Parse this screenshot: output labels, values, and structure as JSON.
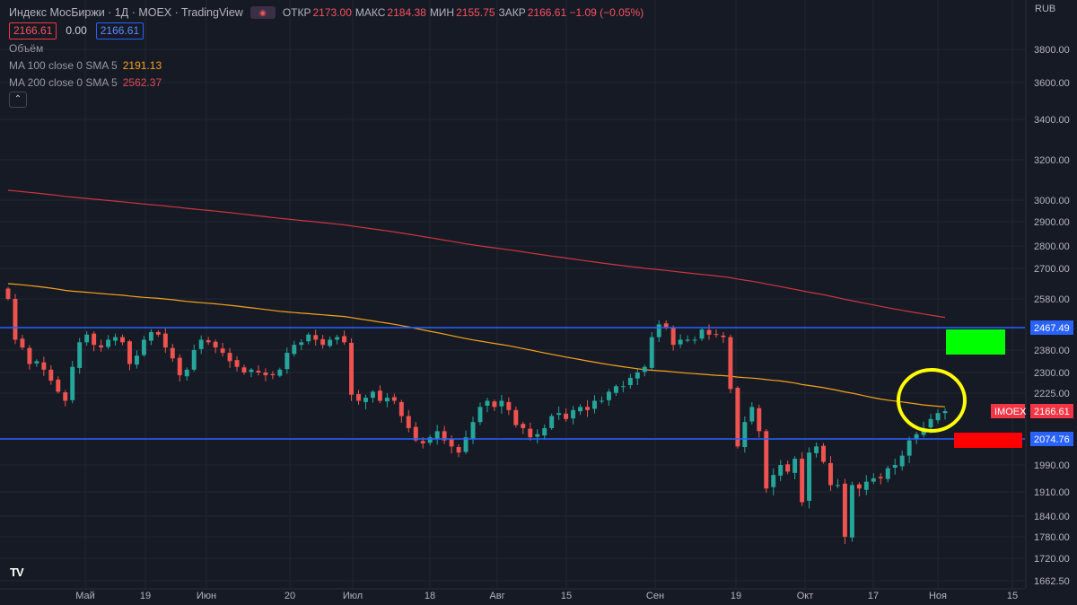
{
  "header": {
    "title": "Индекс МосБиржи · 1Д · MOEX · TradingView",
    "ohlc": [
      {
        "key": "ОТКР",
        "value": "2173.00"
      },
      {
        "key": "МАКС",
        "value": "2184.38"
      },
      {
        "key": "МИН",
        "value": "2155.75"
      },
      {
        "key": "ЗАКР",
        "value": "2166.61 −1.09 (−0.05%)"
      }
    ],
    "price_boxes": [
      "2166.61",
      "0.00",
      "2166.61"
    ],
    "volume_label": "Объём",
    "ma100": {
      "name": "MA 100 close 0 SMA 5",
      "value": "2191.13"
    },
    "ma200": {
      "name": "MA 200 close 0 SMA 5",
      "value": "2562.37"
    },
    "collapse_glyph": "⌃",
    "currency": "RUB",
    "logo_text": "TV"
  },
  "colors": {
    "background": "#161a25",
    "grid": "#232632",
    "up": "#26a69a",
    "down": "#ef5350",
    "ma100": "#f7a21b",
    "ma200": "#c9373f",
    "hline": "#2962ff",
    "marker_green": "#00ff00",
    "marker_red": "#ff0000",
    "circle": "#ffff00"
  },
  "chart_data": {
    "type": "candlestick",
    "title": "Индекс МосБиржи · 1Д · MOEX",
    "x_axis_labels": [
      "Май",
      "19",
      "Июн",
      "20",
      "Июл",
      "18",
      "Авг",
      "15",
      "Сен",
      "19",
      "Окт",
      "17",
      "Ноя",
      "15"
    ],
    "y_tick_labels": [
      "3800.00",
      "3600.00",
      "3400.00",
      "3200.00",
      "3000.00",
      "2900.00",
      "2800.00",
      "2700.00",
      "2580.00",
      "2467.49",
      "2380.00",
      "2300.00",
      "2225.00",
      "2166.61",
      "2074.76",
      "1990.00",
      "1910.00",
      "1840.00",
      "1780.00",
      "1720.00",
      "1662.50"
    ],
    "ylim": [
      1662.5,
      3980
    ],
    "log_scale": true,
    "closes": [
      2580,
      2420,
      2390,
      2330,
      2340,
      2310,
      2270,
      2230,
      2200,
      2320,
      2410,
      2440,
      2400,
      2390,
      2420,
      2430,
      2410,
      2330,
      2360,
      2420,
      2450,
      2440,
      2390,
      2350,
      2290,
      2310,
      2380,
      2420,
      2410,
      2390,
      2370,
      2340,
      2320,
      2300,
      2310,
      2300,
      2290,
      2290,
      2310,
      2370,
      2400,
      2410,
      2440,
      2420,
      2400,
      2420,
      2430,
      2410,
      2220,
      2200,
      2210,
      2230,
      2200,
      2210,
      2200,
      2150,
      2110,
      2070,
      2060,
      2080,
      2100,
      2070,
      2050,
      2030,
      2080,
      2130,
      2180,
      2200,
      2180,
      2200,
      2170,
      2120,
      2110,
      2080,
      2090,
      2110,
      2150,
      2160,
      2140,
      2170,
      2180,
      2170,
      2200,
      2200,
      2230,
      2250,
      2250,
      2280,
      2300,
      2320,
      2430,
      2480,
      2470,
      2400,
      2420,
      2420,
      2420,
      2460,
      2440,
      2440,
      2430,
      2240,
      2050,
      2130,
      2180,
      2100,
      1920,
      1960,
      1990,
      1970,
      2010,
      1880,
      2030,
      2050,
      2000,
      1930,
      1930,
      1780,
      1930,
      1920,
      1940,
      1950,
      1950,
      1980,
      1990,
      2020,
      2070,
      2090,
      2110,
      2140,
      2160,
      2166.61
    ],
    "hlines": [
      {
        "price": 2467.49,
        "label": "2467.49"
      },
      {
        "price": 2074.76,
        "label": "2074.76"
      }
    ],
    "ma100_value": 2191.13,
    "ma200_value": 2562.37,
    "last_price": {
      "ticker": "IMOEX",
      "value": "2166.61"
    }
  }
}
